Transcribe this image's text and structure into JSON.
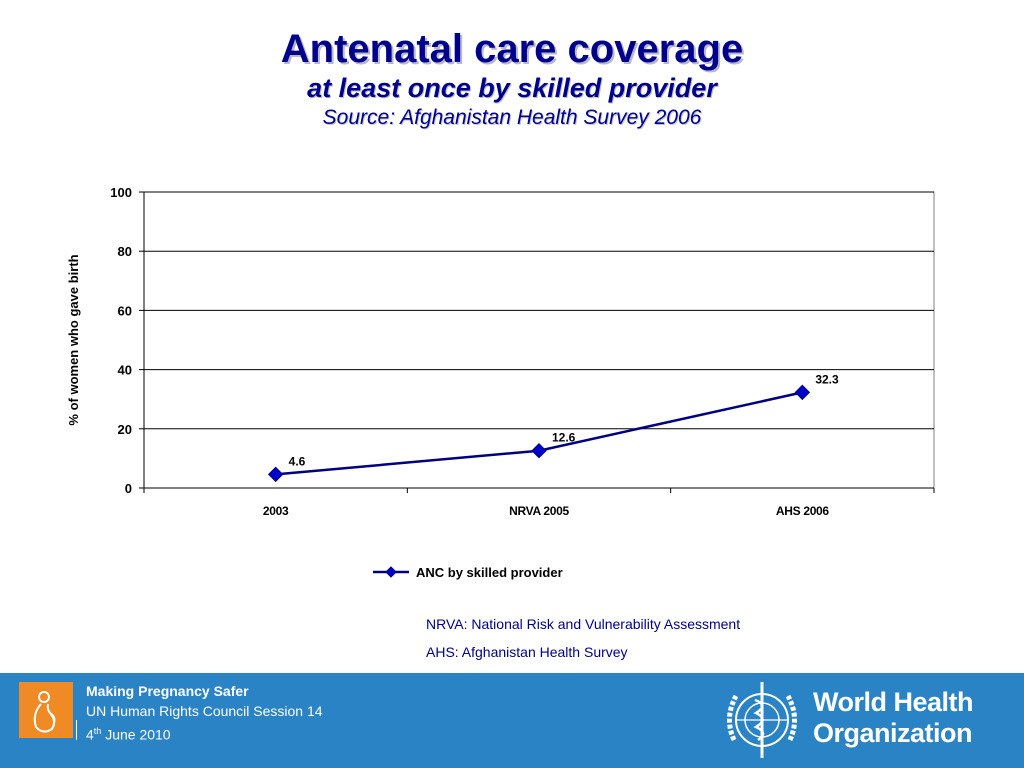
{
  "slide": {
    "title": "Antenatal care coverage",
    "subtitle": "at least once by skilled provider",
    "source": "Source: Afghanistan Health Survey 2006"
  },
  "chart_data": {
    "type": "line",
    "categories": [
      "2003",
      "NRVA 2005",
      "AHS 2006"
    ],
    "series": [
      {
        "name": "ANC by skilled provider",
        "values": [
          4.6,
          12.6,
          32.3
        ],
        "color": "#000080"
      }
    ],
    "data_labels": [
      "4.6",
      "12.6",
      "32.3"
    ],
    "xlabel": "",
    "ylabel": "% of women who gave birth",
    "ylim": [
      0,
      100
    ],
    "yticks": [
      0,
      20,
      40,
      60,
      80,
      100
    ],
    "grid": true,
    "legend": "bottom"
  },
  "notes": {
    "nrva": "NRVA: National Risk and Vulnerability Assessment",
    "ahs": "AHS: Afghanistan Health Survey"
  },
  "footer": {
    "line1": "Making Pregnancy Safer",
    "line2": "UN Human Rights Council Session 14",
    "line3_num": "4",
    "line3_sup": "th",
    "line3_rest": " June 2010",
    "org_line1": "World Health",
    "org_line2": "Organization",
    "bg_color": "#2a83c4"
  }
}
